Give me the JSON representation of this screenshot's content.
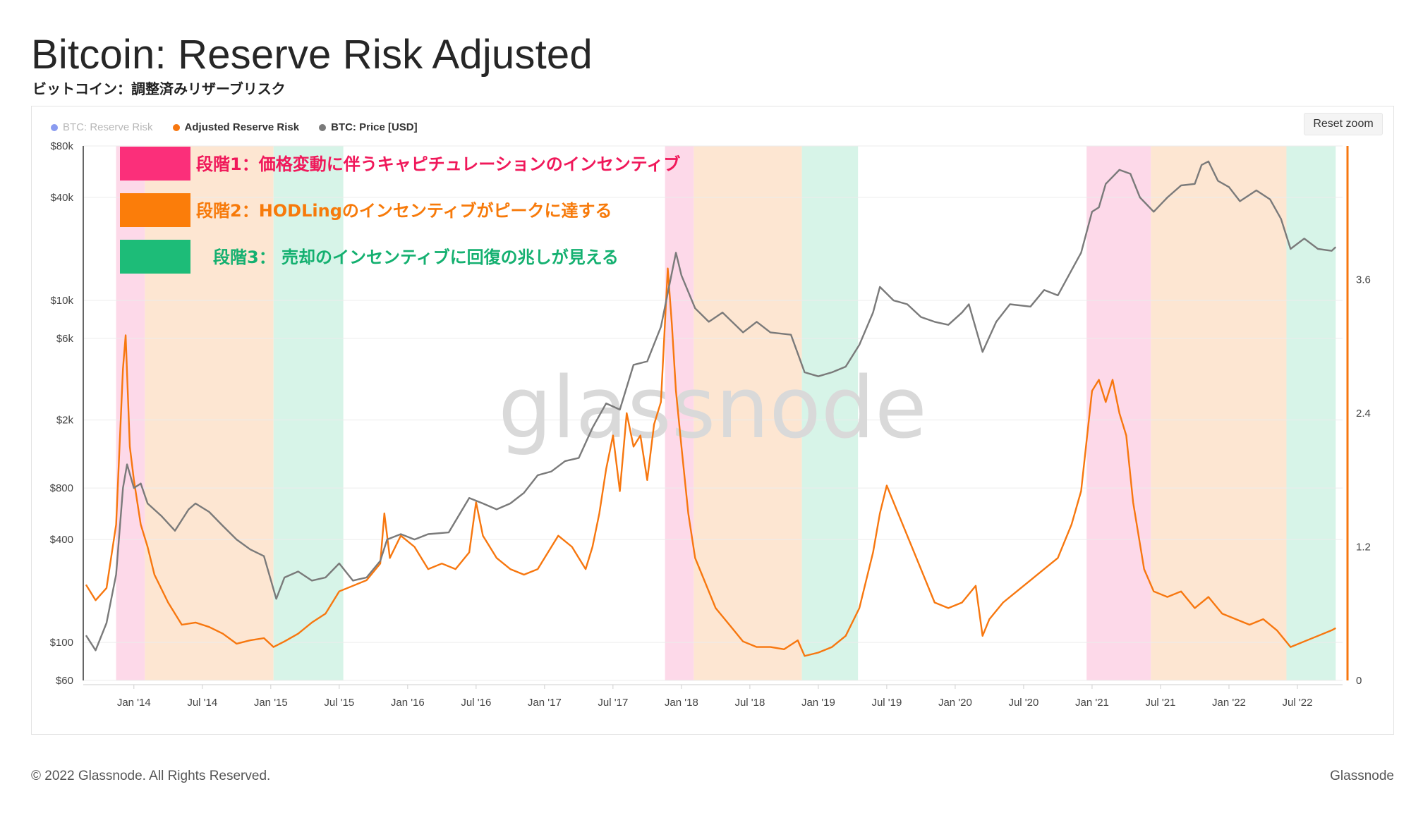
{
  "header": {
    "title": "Bitcoin: Reserve Risk Adjusted",
    "subtitle": "ビットコイン：調整済みリザーブリスク"
  },
  "legend": [
    {
      "label": "BTC: Reserve Risk",
      "color": "#8a9bf0",
      "active": false
    },
    {
      "label": "Adjusted Reserve Risk",
      "color": "#f7770f",
      "active": true
    },
    {
      "label": "BTC: Price [USD]",
      "color": "#7a7a7a",
      "active": true
    }
  ],
  "reset_zoom_label": "Reset zoom",
  "watermark": "glassnode",
  "phases": [
    {
      "label": "段階1：価格変動に伴うキャピチュレーションのインセンティブ",
      "color": "#fb2f7a",
      "text_color": "#f0185a",
      "band_color": "#fdd9e9"
    },
    {
      "label": "段階2：HODLingのインセンティブがピークに達する",
      "color": "#fb7d0a",
      "text_color": "#f77a0a",
      "band_color": "#fde6d2"
    },
    {
      "label": "段階3： 売却のインセンティブに回復の兆しが見える",
      "color": "#1dbc78",
      "text_color": "#14b070",
      "band_color": "#d7f4e8"
    }
  ],
  "footer": {
    "copyright": "© 2022 Glassnode. All Rights Reserved.",
    "brand": "Glassnode"
  },
  "chart_data": {
    "type": "line",
    "x_ticks": [
      "Jan '14",
      "Jul '14",
      "Jan '15",
      "Jul '15",
      "Jan '16",
      "Jul '16",
      "Jan '17",
      "Jul '17",
      "Jan '18",
      "Jul '18",
      "Jan '19",
      "Jul '19",
      "Jan '20",
      "Jul '20",
      "Jan '21",
      "Jul '21",
      "Jan '22",
      "Jul '22"
    ],
    "x_tick_values": [
      2014.0,
      2014.5,
      2015.0,
      2015.5,
      2016.0,
      2016.5,
      2017.0,
      2017.5,
      2018.0,
      2018.5,
      2019.0,
      2019.5,
      2020.0,
      2020.5,
      2021.0,
      2021.5,
      2022.0,
      2022.5
    ],
    "xlim": [
      2013.63,
      2022.83
    ],
    "y_left": {
      "label": "BTC: Price [USD]",
      "scale": "log",
      "ticks": [
        "$60",
        "$100",
        "$400",
        "$800",
        "$2k",
        "$6k",
        "$10k",
        "$40k",
        "$80k"
      ],
      "tick_values": [
        60,
        100,
        400,
        800,
        2000,
        6000,
        10000,
        40000,
        80000
      ],
      "range": [
        60,
        80000
      ]
    },
    "y_right": {
      "label": "Adjusted Reserve Risk",
      "scale": "linear",
      "ticks": [
        "0",
        "1.2",
        "2.4",
        "3.6"
      ],
      "tick_values": [
        0,
        1.2,
        2.4,
        3.6
      ],
      "range": [
        0,
        4.8
      ]
    },
    "phase_bands": [
      {
        "phase": 1,
        "start": 2013.87,
        "end": 2014.08
      },
      {
        "phase": 2,
        "start": 2014.08,
        "end": 2015.02
      },
      {
        "phase": 3,
        "start": 2015.02,
        "end": 2015.53
      },
      {
        "phase": 1,
        "start": 2017.88,
        "end": 2018.09
      },
      {
        "phase": 2,
        "start": 2018.09,
        "end": 2018.88
      },
      {
        "phase": 3,
        "start": 2018.88,
        "end": 2019.29
      },
      {
        "phase": 1,
        "start": 2020.96,
        "end": 2021.43
      },
      {
        "phase": 2,
        "start": 2021.43,
        "end": 2022.42
      },
      {
        "phase": 3,
        "start": 2022.42,
        "end": 2022.78
      }
    ],
    "series": [
      {
        "name": "Adjusted Reserve Risk",
        "color": "#f7770f",
        "axis": "right",
        "points": [
          [
            2013.65,
            0.86
          ],
          [
            2013.72,
            0.72
          ],
          [
            2013.8,
            0.83
          ],
          [
            2013.87,
            1.4
          ],
          [
            2013.92,
            2.8
          ],
          [
            2013.94,
            3.1
          ],
          [
            2013.97,
            2.1
          ],
          [
            2014.0,
            1.8
          ],
          [
            2014.05,
            1.4
          ],
          [
            2014.1,
            1.2
          ],
          [
            2014.15,
            0.95
          ],
          [
            2014.25,
            0.7
          ],
          [
            2014.35,
            0.5
          ],
          [
            2014.45,
            0.52
          ],
          [
            2014.55,
            0.48
          ],
          [
            2014.65,
            0.42
          ],
          [
            2014.75,
            0.33
          ],
          [
            2014.85,
            0.36
          ],
          [
            2014.95,
            0.38
          ],
          [
            2015.02,
            0.3
          ],
          [
            2015.1,
            0.35
          ],
          [
            2015.2,
            0.42
          ],
          [
            2015.3,
            0.52
          ],
          [
            2015.4,
            0.6
          ],
          [
            2015.5,
            0.8
          ],
          [
            2015.6,
            0.85
          ],
          [
            2015.7,
            0.9
          ],
          [
            2015.8,
            1.05
          ],
          [
            2015.83,
            1.5
          ],
          [
            2015.87,
            1.1
          ],
          [
            2015.95,
            1.3
          ],
          [
            2016.05,
            1.2
          ],
          [
            2016.15,
            1.0
          ],
          [
            2016.25,
            1.05
          ],
          [
            2016.35,
            1.0
          ],
          [
            2016.45,
            1.15
          ],
          [
            2016.5,
            1.6
          ],
          [
            2016.55,
            1.3
          ],
          [
            2016.65,
            1.1
          ],
          [
            2016.75,
            1.0
          ],
          [
            2016.85,
            0.95
          ],
          [
            2016.95,
            1.0
          ],
          [
            2017.0,
            1.1
          ],
          [
            2017.1,
            1.3
          ],
          [
            2017.2,
            1.2
          ],
          [
            2017.3,
            1.0
          ],
          [
            2017.35,
            1.2
          ],
          [
            2017.4,
            1.5
          ],
          [
            2017.45,
            1.9
          ],
          [
            2017.5,
            2.2
          ],
          [
            2017.55,
            1.7
          ],
          [
            2017.6,
            2.4
          ],
          [
            2017.65,
            2.1
          ],
          [
            2017.7,
            2.2
          ],
          [
            2017.75,
            1.8
          ],
          [
            2017.8,
            2.3
          ],
          [
            2017.85,
            2.5
          ],
          [
            2017.9,
            3.7
          ],
          [
            2017.93,
            3.2
          ],
          [
            2017.96,
            2.6
          ],
          [
            2018.0,
            2.1
          ],
          [
            2018.05,
            1.5
          ],
          [
            2018.1,
            1.1
          ],
          [
            2018.15,
            0.95
          ],
          [
            2018.2,
            0.8
          ],
          [
            2018.25,
            0.65
          ],
          [
            2018.35,
            0.5
          ],
          [
            2018.45,
            0.35
          ],
          [
            2018.55,
            0.3
          ],
          [
            2018.65,
            0.3
          ],
          [
            2018.75,
            0.28
          ],
          [
            2018.85,
            0.36
          ],
          [
            2018.9,
            0.22
          ],
          [
            2019.0,
            0.25
          ],
          [
            2019.1,
            0.3
          ],
          [
            2019.2,
            0.4
          ],
          [
            2019.3,
            0.65
          ],
          [
            2019.4,
            1.15
          ],
          [
            2019.45,
            1.5
          ],
          [
            2019.5,
            1.75
          ],
          [
            2019.55,
            1.6
          ],
          [
            2019.65,
            1.3
          ],
          [
            2019.75,
            1.0
          ],
          [
            2019.85,
            0.7
          ],
          [
            2019.95,
            0.65
          ],
          [
            2020.05,
            0.7
          ],
          [
            2020.15,
            0.85
          ],
          [
            2020.2,
            0.4
          ],
          [
            2020.25,
            0.55
          ],
          [
            2020.35,
            0.7
          ],
          [
            2020.45,
            0.8
          ],
          [
            2020.55,
            0.9
          ],
          [
            2020.65,
            1.0
          ],
          [
            2020.75,
            1.1
          ],
          [
            2020.85,
            1.4
          ],
          [
            2020.92,
            1.7
          ],
          [
            2021.0,
            2.6
          ],
          [
            2021.05,
            2.7
          ],
          [
            2021.1,
            2.5
          ],
          [
            2021.15,
            2.7
          ],
          [
            2021.2,
            2.4
          ],
          [
            2021.25,
            2.2
          ],
          [
            2021.3,
            1.6
          ],
          [
            2021.38,
            1.0
          ],
          [
            2021.45,
            0.8
          ],
          [
            2021.55,
            0.75
          ],
          [
            2021.65,
            0.8
          ],
          [
            2021.75,
            0.65
          ],
          [
            2021.85,
            0.75
          ],
          [
            2021.95,
            0.6
          ],
          [
            2022.05,
            0.55
          ],
          [
            2022.15,
            0.5
          ],
          [
            2022.25,
            0.55
          ],
          [
            2022.35,
            0.45
          ],
          [
            2022.45,
            0.3
          ],
          [
            2022.55,
            0.35
          ],
          [
            2022.65,
            0.4
          ],
          [
            2022.75,
            0.45
          ],
          [
            2022.78,
            0.47
          ]
        ]
      },
      {
        "name": "BTC: Price [USD]",
        "color": "#7a7a7a",
        "axis": "left",
        "points": [
          [
            2013.65,
            110
          ],
          [
            2013.72,
            90
          ],
          [
            2013.8,
            130
          ],
          [
            2013.87,
            250
          ],
          [
            2013.92,
            800
          ],
          [
            2013.95,
            1100
          ],
          [
            2014.0,
            800
          ],
          [
            2014.05,
            850
          ],
          [
            2014.1,
            650
          ],
          [
            2014.2,
            550
          ],
          [
            2014.3,
            450
          ],
          [
            2014.4,
            600
          ],
          [
            2014.45,
            650
          ],
          [
            2014.55,
            580
          ],
          [
            2014.65,
            480
          ],
          [
            2014.75,
            400
          ],
          [
            2014.85,
            350
          ],
          [
            2014.95,
            320
          ],
          [
            2015.04,
            180
          ],
          [
            2015.1,
            240
          ],
          [
            2015.2,
            260
          ],
          [
            2015.3,
            230
          ],
          [
            2015.4,
            240
          ],
          [
            2015.5,
            290
          ],
          [
            2015.6,
            230
          ],
          [
            2015.7,
            240
          ],
          [
            2015.8,
            300
          ],
          [
            2015.85,
            400
          ],
          [
            2015.95,
            430
          ],
          [
            2016.05,
            400
          ],
          [
            2016.15,
            430
          ],
          [
            2016.3,
            440
          ],
          [
            2016.45,
            700
          ],
          [
            2016.55,
            650
          ],
          [
            2016.65,
            600
          ],
          [
            2016.75,
            650
          ],
          [
            2016.85,
            750
          ],
          [
            2016.95,
            950
          ],
          [
            2017.05,
            1000
          ],
          [
            2017.15,
            1150
          ],
          [
            2017.25,
            1200
          ],
          [
            2017.35,
            1800
          ],
          [
            2017.45,
            2500
          ],
          [
            2017.55,
            2300
          ],
          [
            2017.65,
            4200
          ],
          [
            2017.75,
            4400
          ],
          [
            2017.85,
            7000
          ],
          [
            2017.96,
            19000
          ],
          [
            2018.0,
            14000
          ],
          [
            2018.1,
            9000
          ],
          [
            2018.2,
            7500
          ],
          [
            2018.3,
            8500
          ],
          [
            2018.45,
            6500
          ],
          [
            2018.55,
            7500
          ],
          [
            2018.65,
            6500
          ],
          [
            2018.8,
            6300
          ],
          [
            2018.9,
            3800
          ],
          [
            2019.0,
            3600
          ],
          [
            2019.1,
            3800
          ],
          [
            2019.2,
            4100
          ],
          [
            2019.3,
            5500
          ],
          [
            2019.4,
            8500
          ],
          [
            2019.45,
            12000
          ],
          [
            2019.55,
            10000
          ],
          [
            2019.65,
            9500
          ],
          [
            2019.75,
            8000
          ],
          [
            2019.85,
            7500
          ],
          [
            2019.95,
            7200
          ],
          [
            2020.05,
            8500
          ],
          [
            2020.1,
            9500
          ],
          [
            2020.2,
            5000
          ],
          [
            2020.3,
            7500
          ],
          [
            2020.4,
            9500
          ],
          [
            2020.55,
            9200
          ],
          [
            2020.65,
            11500
          ],
          [
            2020.75,
            10700
          ],
          [
            2020.85,
            15000
          ],
          [
            2020.92,
            19000
          ],
          [
            2021.0,
            33000
          ],
          [
            2021.05,
            35000
          ],
          [
            2021.1,
            48000
          ],
          [
            2021.2,
            58000
          ],
          [
            2021.28,
            55000
          ],
          [
            2021.35,
            40000
          ],
          [
            2021.45,
            33000
          ],
          [
            2021.55,
            40000
          ],
          [
            2021.65,
            47000
          ],
          [
            2021.75,
            48000
          ],
          [
            2021.8,
            62000
          ],
          [
            2021.85,
            65000
          ],
          [
            2021.92,
            50000
          ],
          [
            2022.0,
            46000
          ],
          [
            2022.08,
            38000
          ],
          [
            2022.2,
            44000
          ],
          [
            2022.3,
            39000
          ],
          [
            2022.38,
            30000
          ],
          [
            2022.45,
            20000
          ],
          [
            2022.55,
            23000
          ],
          [
            2022.65,
            20000
          ],
          [
            2022.75,
            19500
          ],
          [
            2022.78,
            20500
          ]
        ]
      }
    ]
  }
}
